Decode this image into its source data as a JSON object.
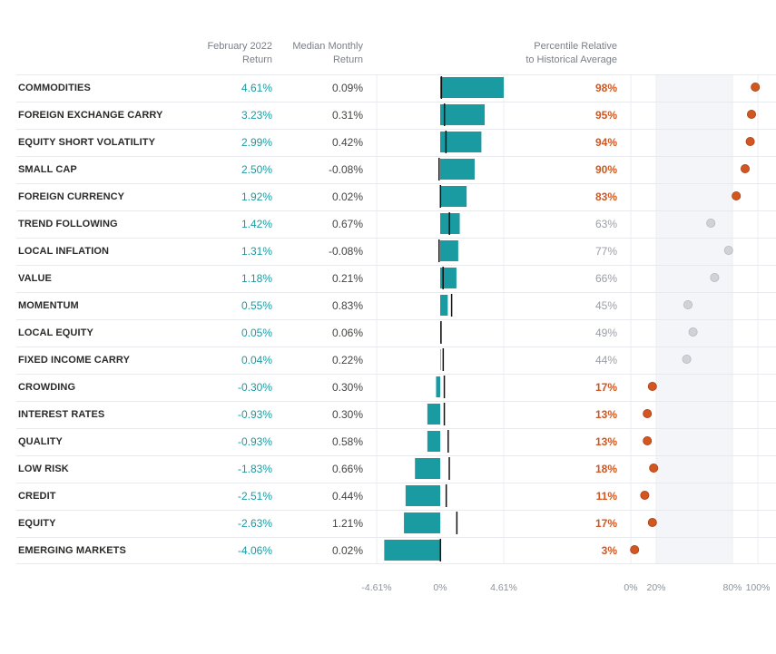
{
  "header": {
    "feb_line1": "February 2022",
    "feb_line2": "Return",
    "med_line1": "Median Monthly",
    "med_line2": "Return",
    "pct_line1": "Percentile Relative",
    "pct_line2": "to Historical Average"
  },
  "colors": {
    "bar": "#1a9ba1",
    "high": "#d2561f",
    "mid": "#cfd2d6",
    "band": "#f3f5f8"
  },
  "chart_data": {
    "type": "table",
    "rows": [
      {
        "name": "COMMODITIES",
        "feb": 4.61,
        "feb_label": "4.61%",
        "median": 0.09,
        "median_label": "0.09%",
        "pct": 98,
        "pct_label": "98%"
      },
      {
        "name": "FOREIGN EXCHANGE CARRY",
        "feb": 3.23,
        "feb_label": "3.23%",
        "median": 0.31,
        "median_label": "0.31%",
        "pct": 95,
        "pct_label": "95%"
      },
      {
        "name": "EQUITY SHORT VOLATILITY",
        "feb": 2.99,
        "feb_label": "2.99%",
        "median": 0.42,
        "median_label": "0.42%",
        "pct": 94,
        "pct_label": "94%"
      },
      {
        "name": "SMALL CAP",
        "feb": 2.5,
        "feb_label": "2.50%",
        "median": -0.08,
        "median_label": "-0.08%",
        "pct": 90,
        "pct_label": "90%"
      },
      {
        "name": "FOREIGN CURRENCY",
        "feb": 1.92,
        "feb_label": "1.92%",
        "median": 0.02,
        "median_label": "0.02%",
        "pct": 83,
        "pct_label": "83%"
      },
      {
        "name": "TREND FOLLOWING",
        "feb": 1.42,
        "feb_label": "1.42%",
        "median": 0.67,
        "median_label": "0.67%",
        "pct": 63,
        "pct_label": "63%"
      },
      {
        "name": "LOCAL INFLATION",
        "feb": 1.31,
        "feb_label": "1.31%",
        "median": -0.08,
        "median_label": "-0.08%",
        "pct": 77,
        "pct_label": "77%"
      },
      {
        "name": "VALUE",
        "feb": 1.18,
        "feb_label": "1.18%",
        "median": 0.21,
        "median_label": "0.21%",
        "pct": 66,
        "pct_label": "66%"
      },
      {
        "name": "MOMENTUM",
        "feb": 0.55,
        "feb_label": "0.55%",
        "median": 0.83,
        "median_label": "0.83%",
        "pct": 45,
        "pct_label": "45%"
      },
      {
        "name": "LOCAL EQUITY",
        "feb": 0.05,
        "feb_label": "0.05%",
        "median": 0.06,
        "median_label": "0.06%",
        "pct": 49,
        "pct_label": "49%"
      },
      {
        "name": "FIXED INCOME CARRY",
        "feb": 0.04,
        "feb_label": "0.04%",
        "median": 0.22,
        "median_label": "0.22%",
        "pct": 44,
        "pct_label": "44%"
      },
      {
        "name": "CROWDING",
        "feb": -0.3,
        "feb_label": "-0.30%",
        "median": 0.3,
        "median_label": "0.30%",
        "pct": 17,
        "pct_label": "17%"
      },
      {
        "name": "INTEREST RATES",
        "feb": -0.93,
        "feb_label": "-0.93%",
        "median": 0.3,
        "median_label": "0.30%",
        "pct": 13,
        "pct_label": "13%"
      },
      {
        "name": "QUALITY",
        "feb": -0.93,
        "feb_label": "-0.93%",
        "median": 0.58,
        "median_label": "0.58%",
        "pct": 13,
        "pct_label": "13%"
      },
      {
        "name": "LOW RISK",
        "feb": -1.83,
        "feb_label": "-1.83%",
        "median": 0.66,
        "median_label": "0.66%",
        "pct": 18,
        "pct_label": "18%"
      },
      {
        "name": "CREDIT",
        "feb": -2.51,
        "feb_label": "-2.51%",
        "median": 0.44,
        "median_label": "0.44%",
        "pct": 11,
        "pct_label": "11%"
      },
      {
        "name": "EQUITY",
        "feb": -2.63,
        "feb_label": "-2.63%",
        "median": 1.21,
        "median_label": "1.21%",
        "pct": 17,
        "pct_label": "17%"
      },
      {
        "name": "EMERGING MARKETS",
        "feb": -4.06,
        "feb_label": "-4.06%",
        "median": 0.02,
        "median_label": "0.02%",
        "pct": 3,
        "pct_label": "3%"
      }
    ],
    "bar_axis": {
      "min": -4.61,
      "max": 4.61,
      "ticks": [
        "-4.61%",
        "0%",
        "4.61%"
      ]
    },
    "pct_axis": {
      "min": 0,
      "max": 100,
      "ticks": [
        "0%",
        "20%",
        "80%",
        "100%"
      ],
      "tick_values": [
        0,
        20,
        80,
        100
      ],
      "band": [
        20,
        80
      ]
    }
  }
}
